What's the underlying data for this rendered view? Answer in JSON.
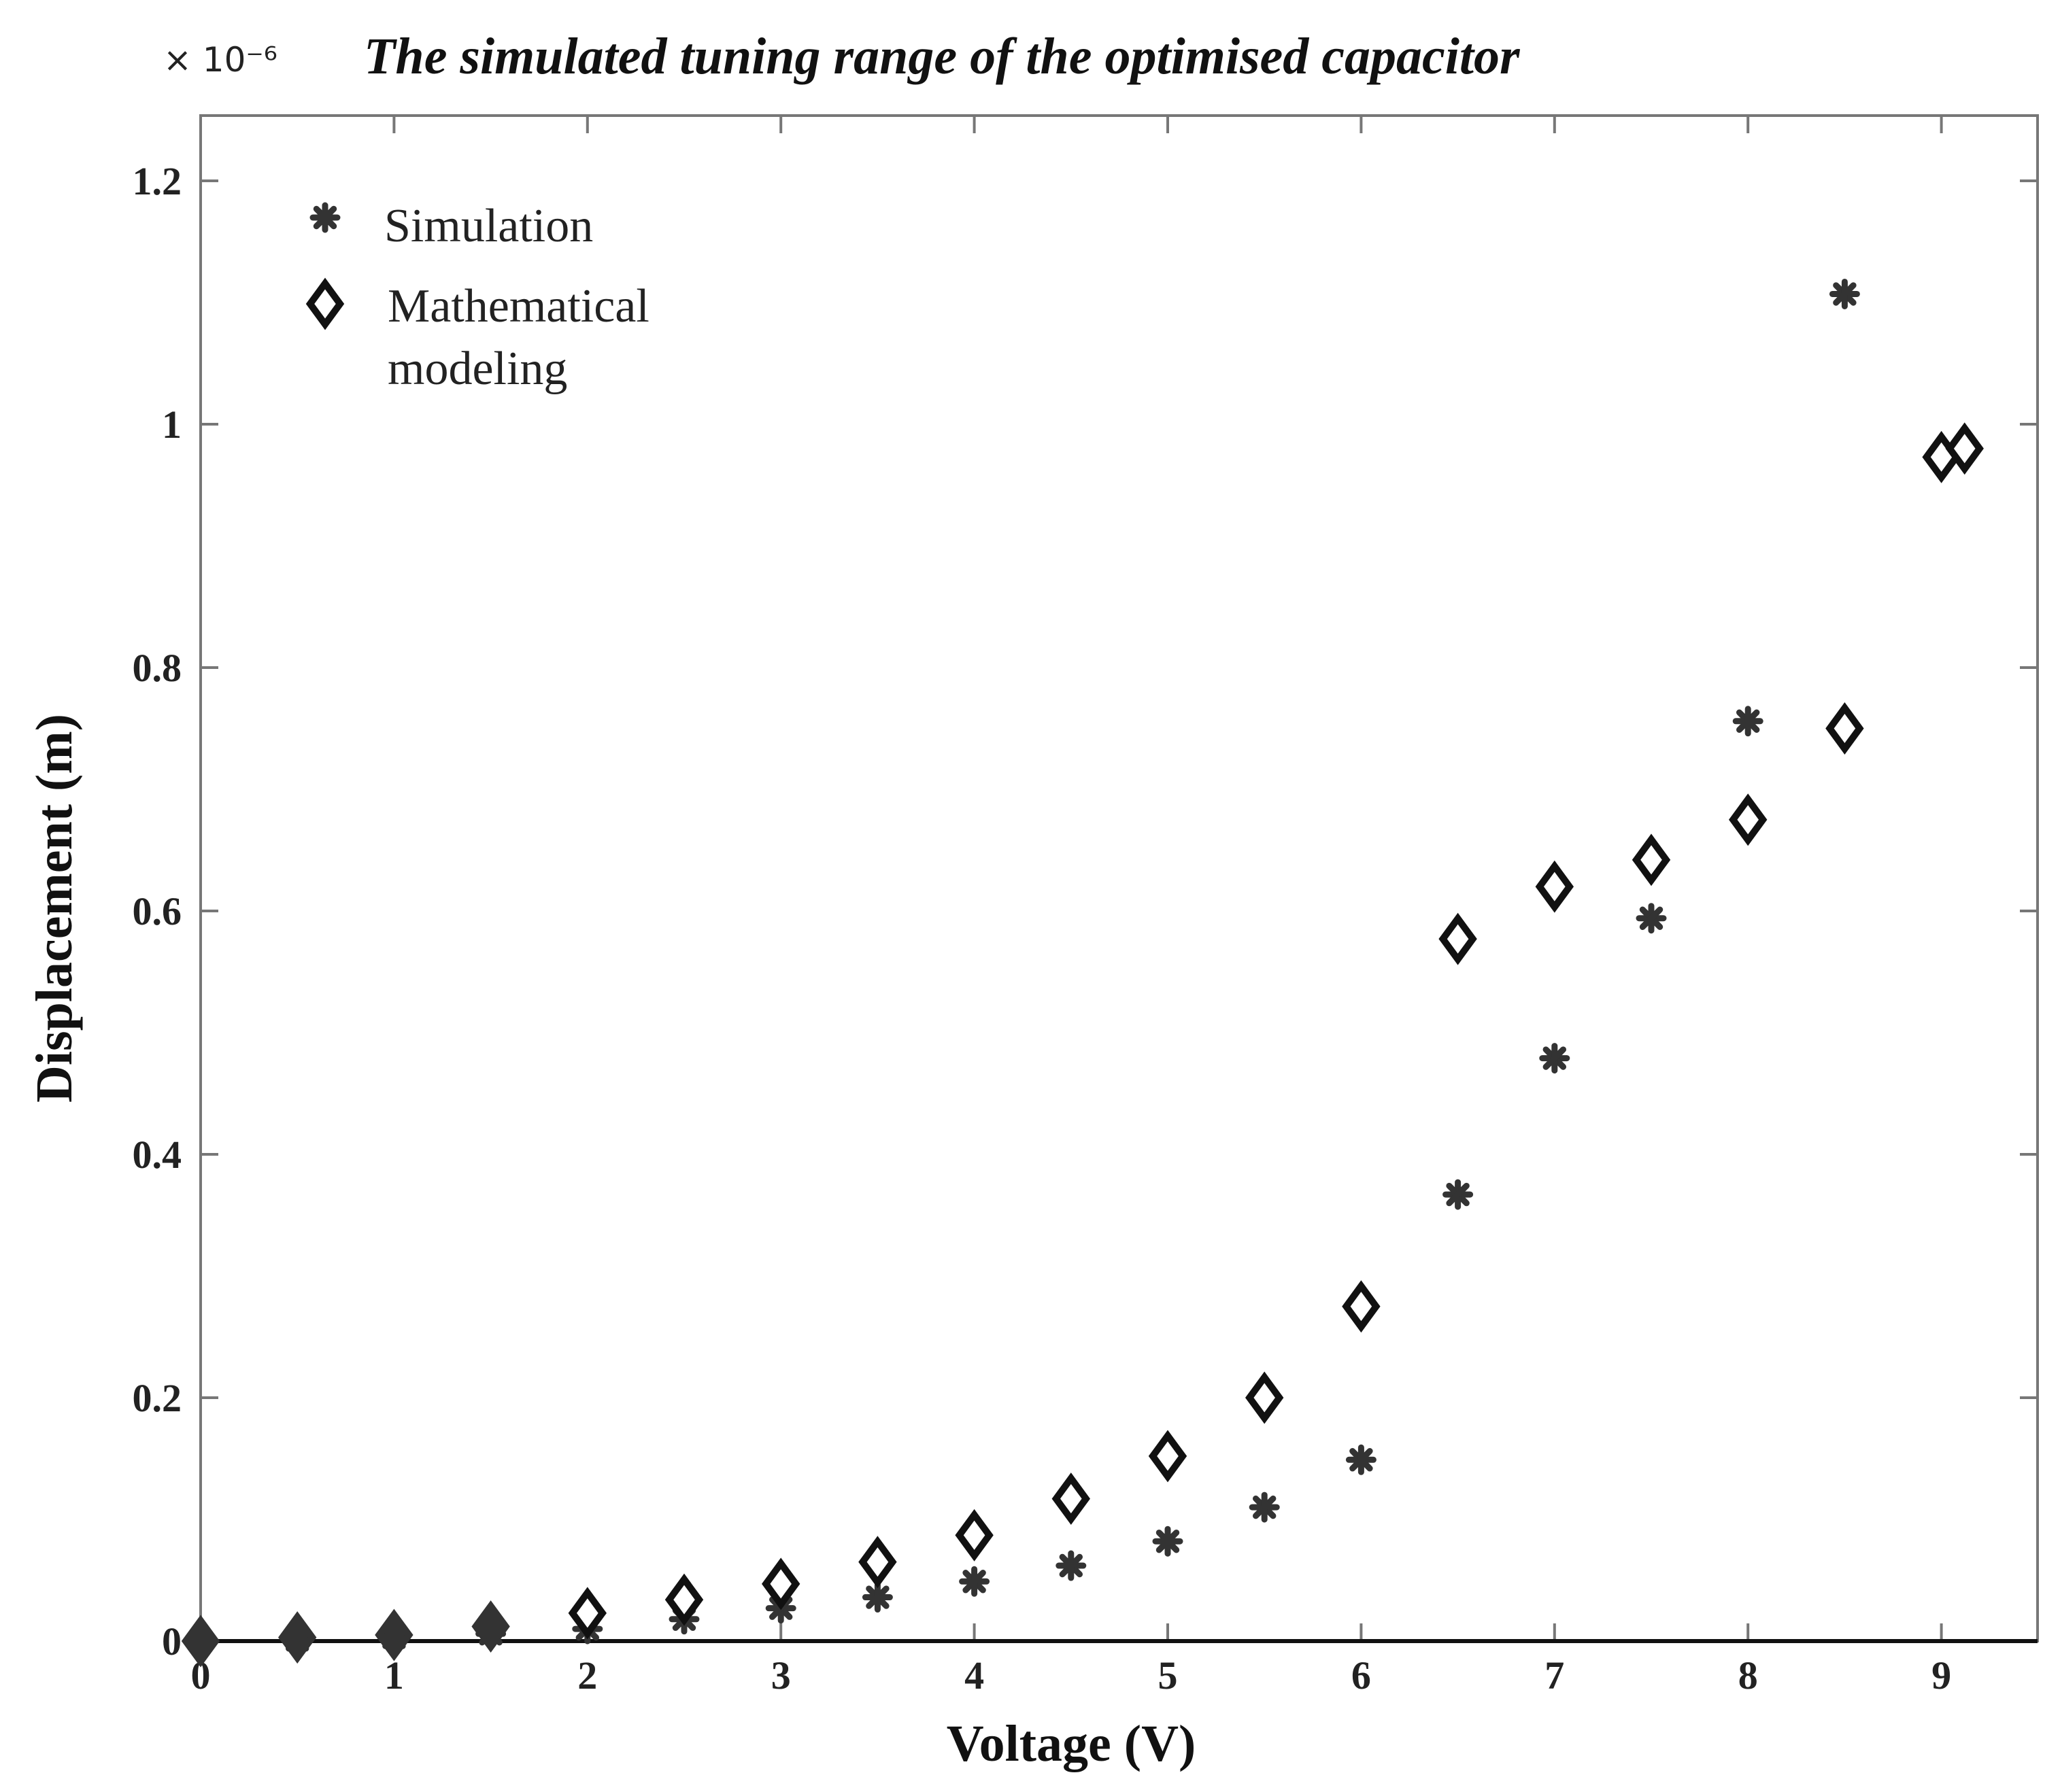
{
  "chart_data": {
    "type": "scatter",
    "title": "The simulated tuning range of the optimised capacitor",
    "exponent_label": "× 10⁻⁶",
    "xlabel": "Voltage (V)",
    "ylabel": "Displacement (m)",
    "xlim": [
      0,
      9.5
    ],
    "ylim": [
      0,
      1.25
    ],
    "xticks": [
      0,
      1,
      2,
      3,
      4,
      5,
      6,
      7,
      8,
      9
    ],
    "xtick_labels": [
      "0",
      "1",
      "2",
      "3",
      "4",
      "5",
      "6",
      "7",
      "8",
      "9"
    ],
    "yticks": [
      0,
      0.2,
      0.4,
      0.6,
      0.8,
      1.0,
      1.2
    ],
    "ytick_labels": [
      "0",
      "0.2",
      "0.4",
      "0.6",
      "0.8",
      "1",
      "1.2"
    ],
    "legend_position": "top-left",
    "series": [
      {
        "name": "Simulation",
        "legend_label": "Simulation",
        "marker": "star",
        "x": [
          0,
          0.5,
          1,
          1.5,
          2,
          2.5,
          3,
          3.5,
          4,
          4.5,
          5,
          5.5,
          6,
          6.5,
          7,
          7.5,
          8,
          8.5
        ],
        "y": [
          0,
          0.001,
          0.003,
          0.006,
          0.01,
          0.018,
          0.027,
          0.036,
          0.049,
          0.062,
          0.082,
          0.11,
          0.149,
          0.367,
          0.479,
          0.594,
          0.756,
          1.107
        ]
      },
      {
        "name": "Mathematical modeling",
        "legend_label": [
          "Mathematical",
          "modeling"
        ],
        "marker": "diamond",
        "x": [
          0,
          0.5,
          1,
          1.5,
          2,
          2.5,
          3,
          3.5,
          4,
          4.5,
          5,
          5.5,
          6,
          6.5,
          7,
          7.5,
          8,
          8.5,
          9,
          9.12
        ],
        "y": [
          0,
          0.003,
          0.005,
          0.012,
          0.023,
          0.034,
          0.047,
          0.065,
          0.087,
          0.117,
          0.152,
          0.2,
          0.275,
          0.577,
          0.62,
          0.642,
          0.675,
          0.75,
          0.973,
          0.98
        ]
      }
    ]
  }
}
